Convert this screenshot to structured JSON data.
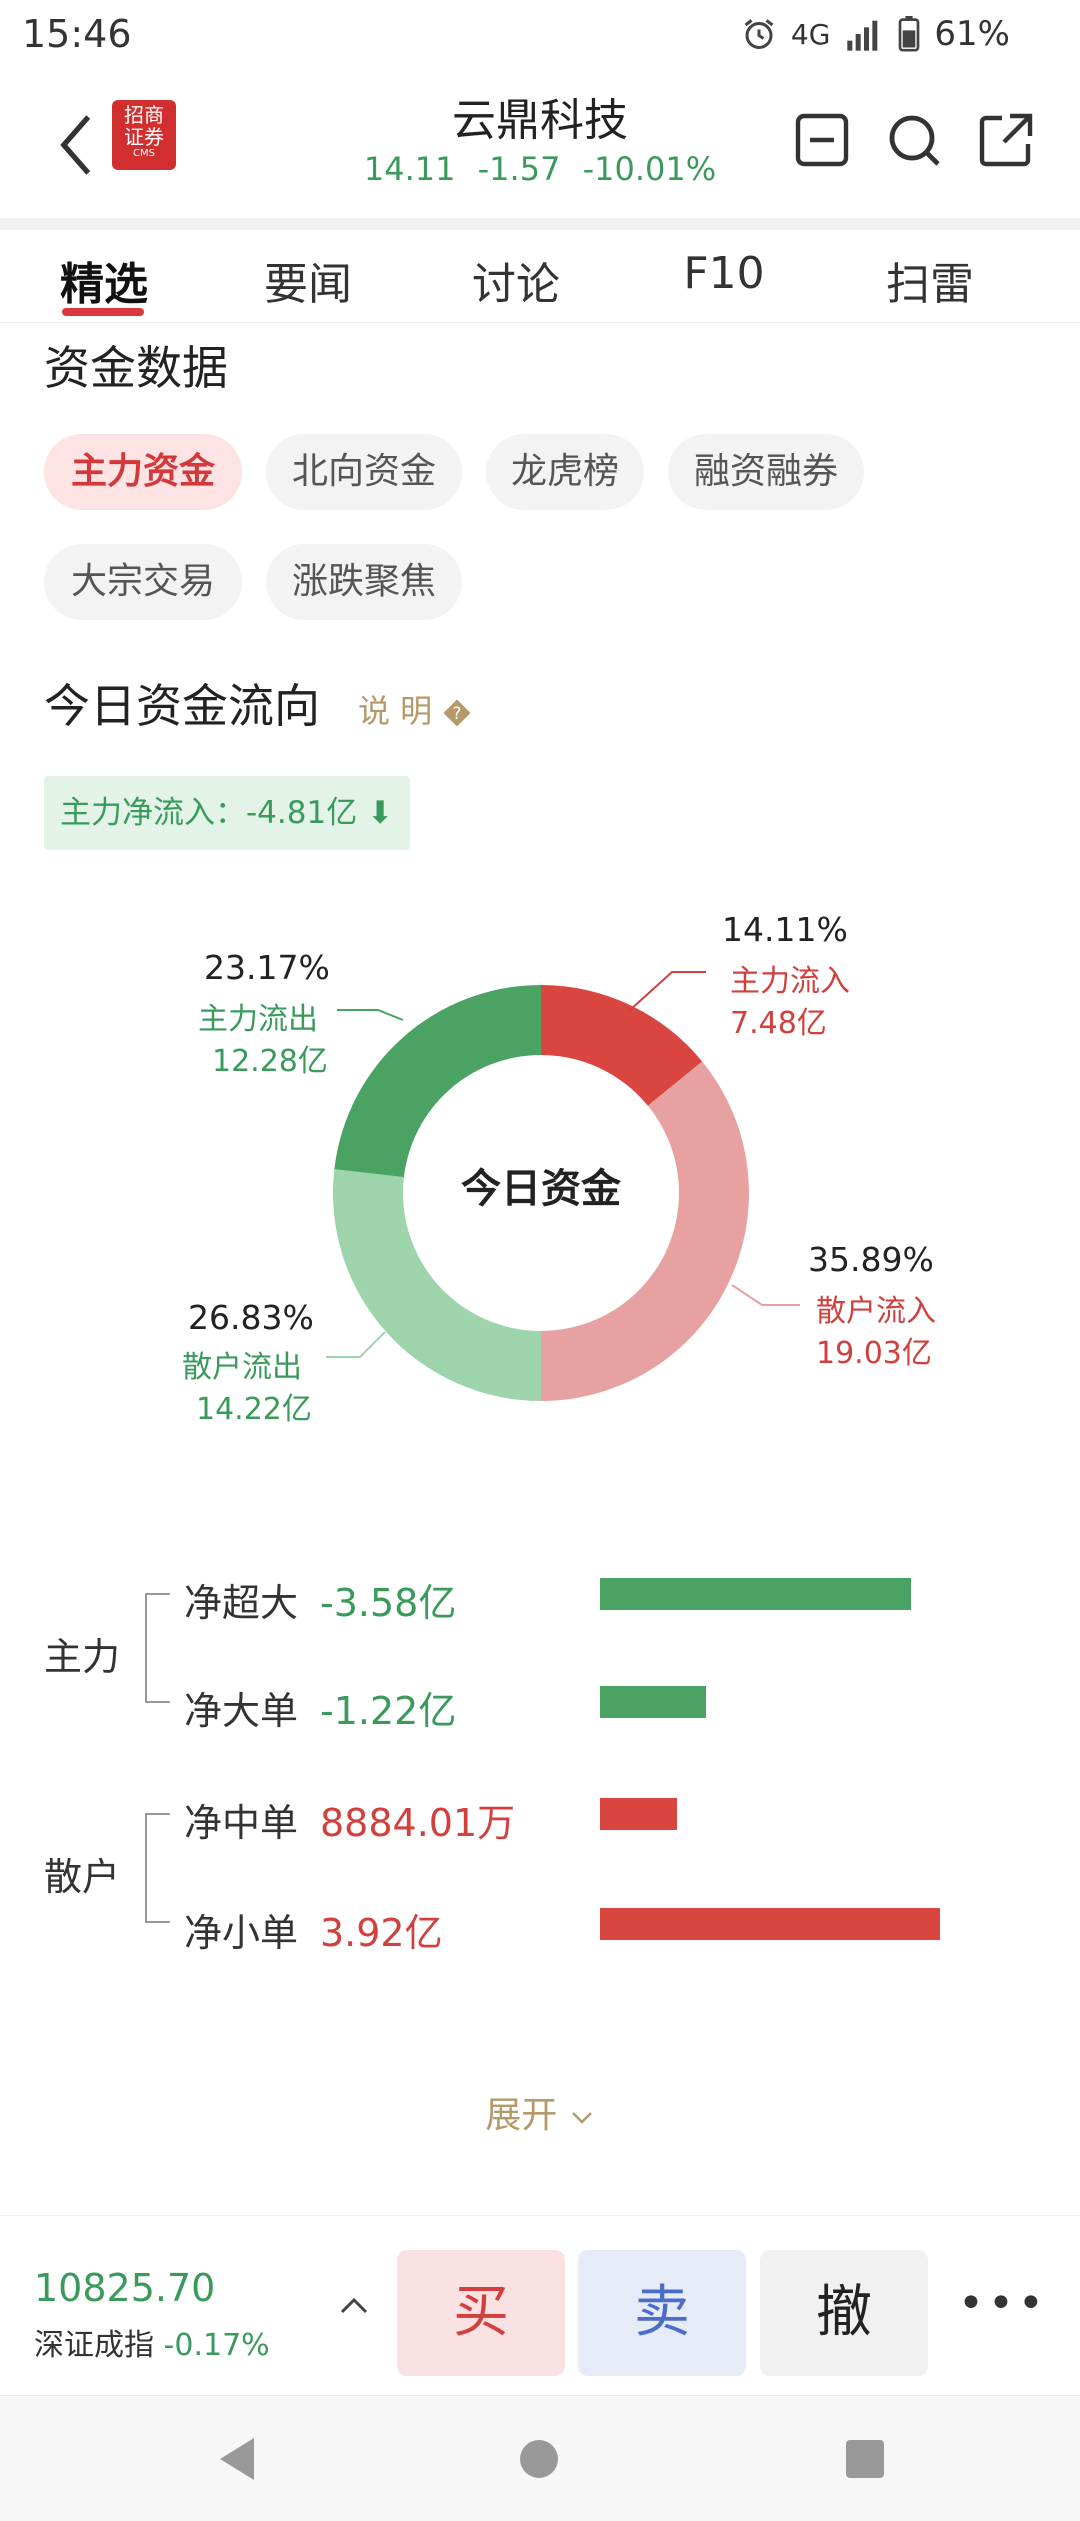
{
  "status": {
    "time": "15:46",
    "network": "4G",
    "battery": "61%"
  },
  "header": {
    "stock_name": "云鼎科技",
    "price": "14.11",
    "change": "-1.57",
    "change_pct": "-10.01%",
    "logo": {
      "line1": "招商",
      "line2": "证券",
      "line3": "CMS"
    }
  },
  "tabs": [
    "精选",
    "要闻",
    "讨论",
    "F10",
    "扫雷"
  ],
  "capital": {
    "section_title": "资金数据",
    "chips": [
      "主力资金",
      "北向资金",
      "龙虎榜",
      "融资融券",
      "大宗交易",
      "涨跌聚焦"
    ],
    "today_title": "今日资金流向",
    "explain": "说 明",
    "net_inflow": "主力净流入：-4.81亿"
  },
  "chart_data": {
    "type": "pie",
    "center_label": "今日资金",
    "slices": [
      {
        "label": "主力流入",
        "pct": 14.11,
        "pct_text": "14.11%",
        "amount": "7.48亿",
        "color": "#d9453f"
      },
      {
        "label": "散户流入",
        "pct": 35.89,
        "pct_text": "35.89%",
        "amount": "19.03亿",
        "color": "#e8a1a1"
      },
      {
        "label": "散户流出",
        "pct": 26.83,
        "pct_text": "26.83%",
        "amount": "14.22亿",
        "color": "#9dd4ac"
      },
      {
        "label": "主力流出",
        "pct": 23.17,
        "pct_text": "23.17%",
        "amount": "12.28亿",
        "color": "#4aa363"
      }
    ]
  },
  "breakdown": {
    "groups": [
      {
        "name": "主力",
        "rows": [
          {
            "label": "净超大",
            "value": "-3.58亿",
            "amount_yi": -3.58
          },
          {
            "label": "净大单",
            "value": "-1.22亿",
            "amount_yi": -1.22
          }
        ]
      },
      {
        "name": "散户",
        "rows": [
          {
            "label": "净中单",
            "value": "8884.01万",
            "amount_yi": 0.888401
          },
          {
            "label": "净小单",
            "value": "3.92亿",
            "amount_yi": 3.92
          }
        ]
      }
    ]
  },
  "expand_label": "展开",
  "footer": {
    "index_value": "10825.70",
    "index_name": "深证成指",
    "index_change": "-0.17%",
    "buy": "买",
    "sell": "卖",
    "cancel": "撤",
    "more": "•••"
  }
}
